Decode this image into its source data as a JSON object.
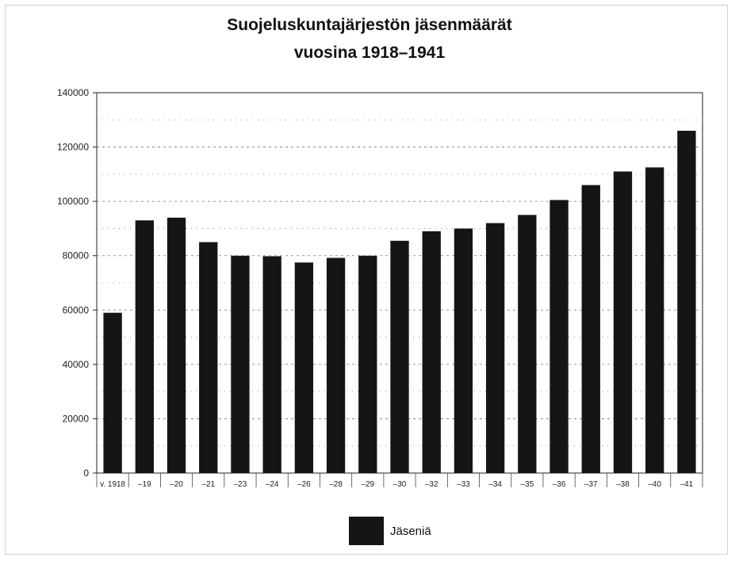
{
  "chart_data": {
    "type": "bar",
    "title": "Suojeluskuntajärjestön jäsenmäärät",
    "subtitle": "vuosina 1918–1941",
    "categories": [
      "v. 1918",
      "–19",
      "–20",
      "–21",
      "–23",
      "–24",
      "–26",
      "–28",
      "–29",
      "–30",
      "–32",
      "–33",
      "–34",
      "–35",
      "–36",
      "–37",
      "–38",
      "–40",
      "–41"
    ],
    "series": [
      {
        "name": "Jäseniä",
        "values": [
          59000,
          93000,
          94000,
          85000,
          80000,
          79800,
          77500,
          79200,
          80000,
          85500,
          89000,
          90000,
          92000,
          95000,
          100500,
          106000,
          111000,
          112500,
          126000
        ]
      }
    ],
    "yticks": [
      "0",
      "20000",
      "40000",
      "60000",
      "80000",
      "100000",
      "120000",
      "140000"
    ],
    "ylim": [
      0,
      140000
    ],
    "grid": true,
    "legend_position": "bottom-center",
    "bar_color": "#151515"
  }
}
